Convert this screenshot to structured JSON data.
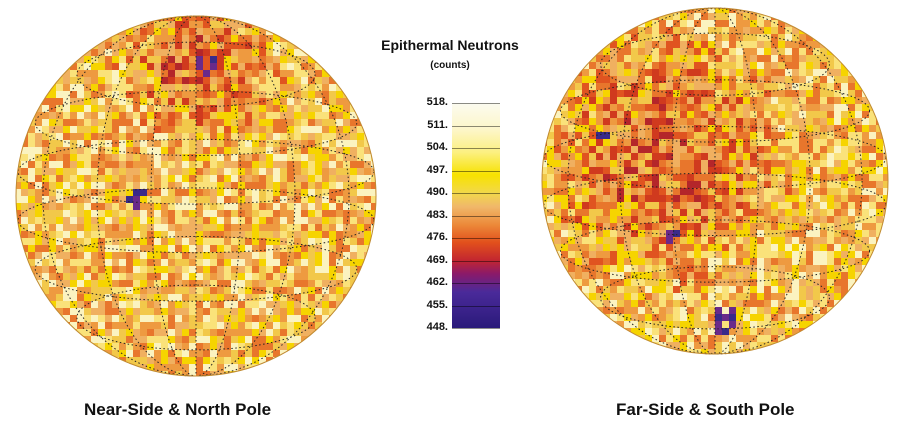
{
  "legend": {
    "title": "Epithermal Neutrons",
    "subtitle": "(counts)",
    "ticks": [
      "518.",
      "511.",
      "504.",
      "497.",
      "490.",
      "483.",
      "476.",
      "469.",
      "462.",
      "455.",
      "448."
    ]
  },
  "globes": [
    {
      "caption": "Near-Side & North Pole"
    },
    {
      "caption": "Far-Side & South Pole"
    }
  ],
  "colors": {
    "high": "#fbfbf0",
    "mid_high": "#f7e200",
    "mid": "#f0b86a",
    "mid_low": "#e2501c",
    "low": "#2a1a7a"
  }
}
